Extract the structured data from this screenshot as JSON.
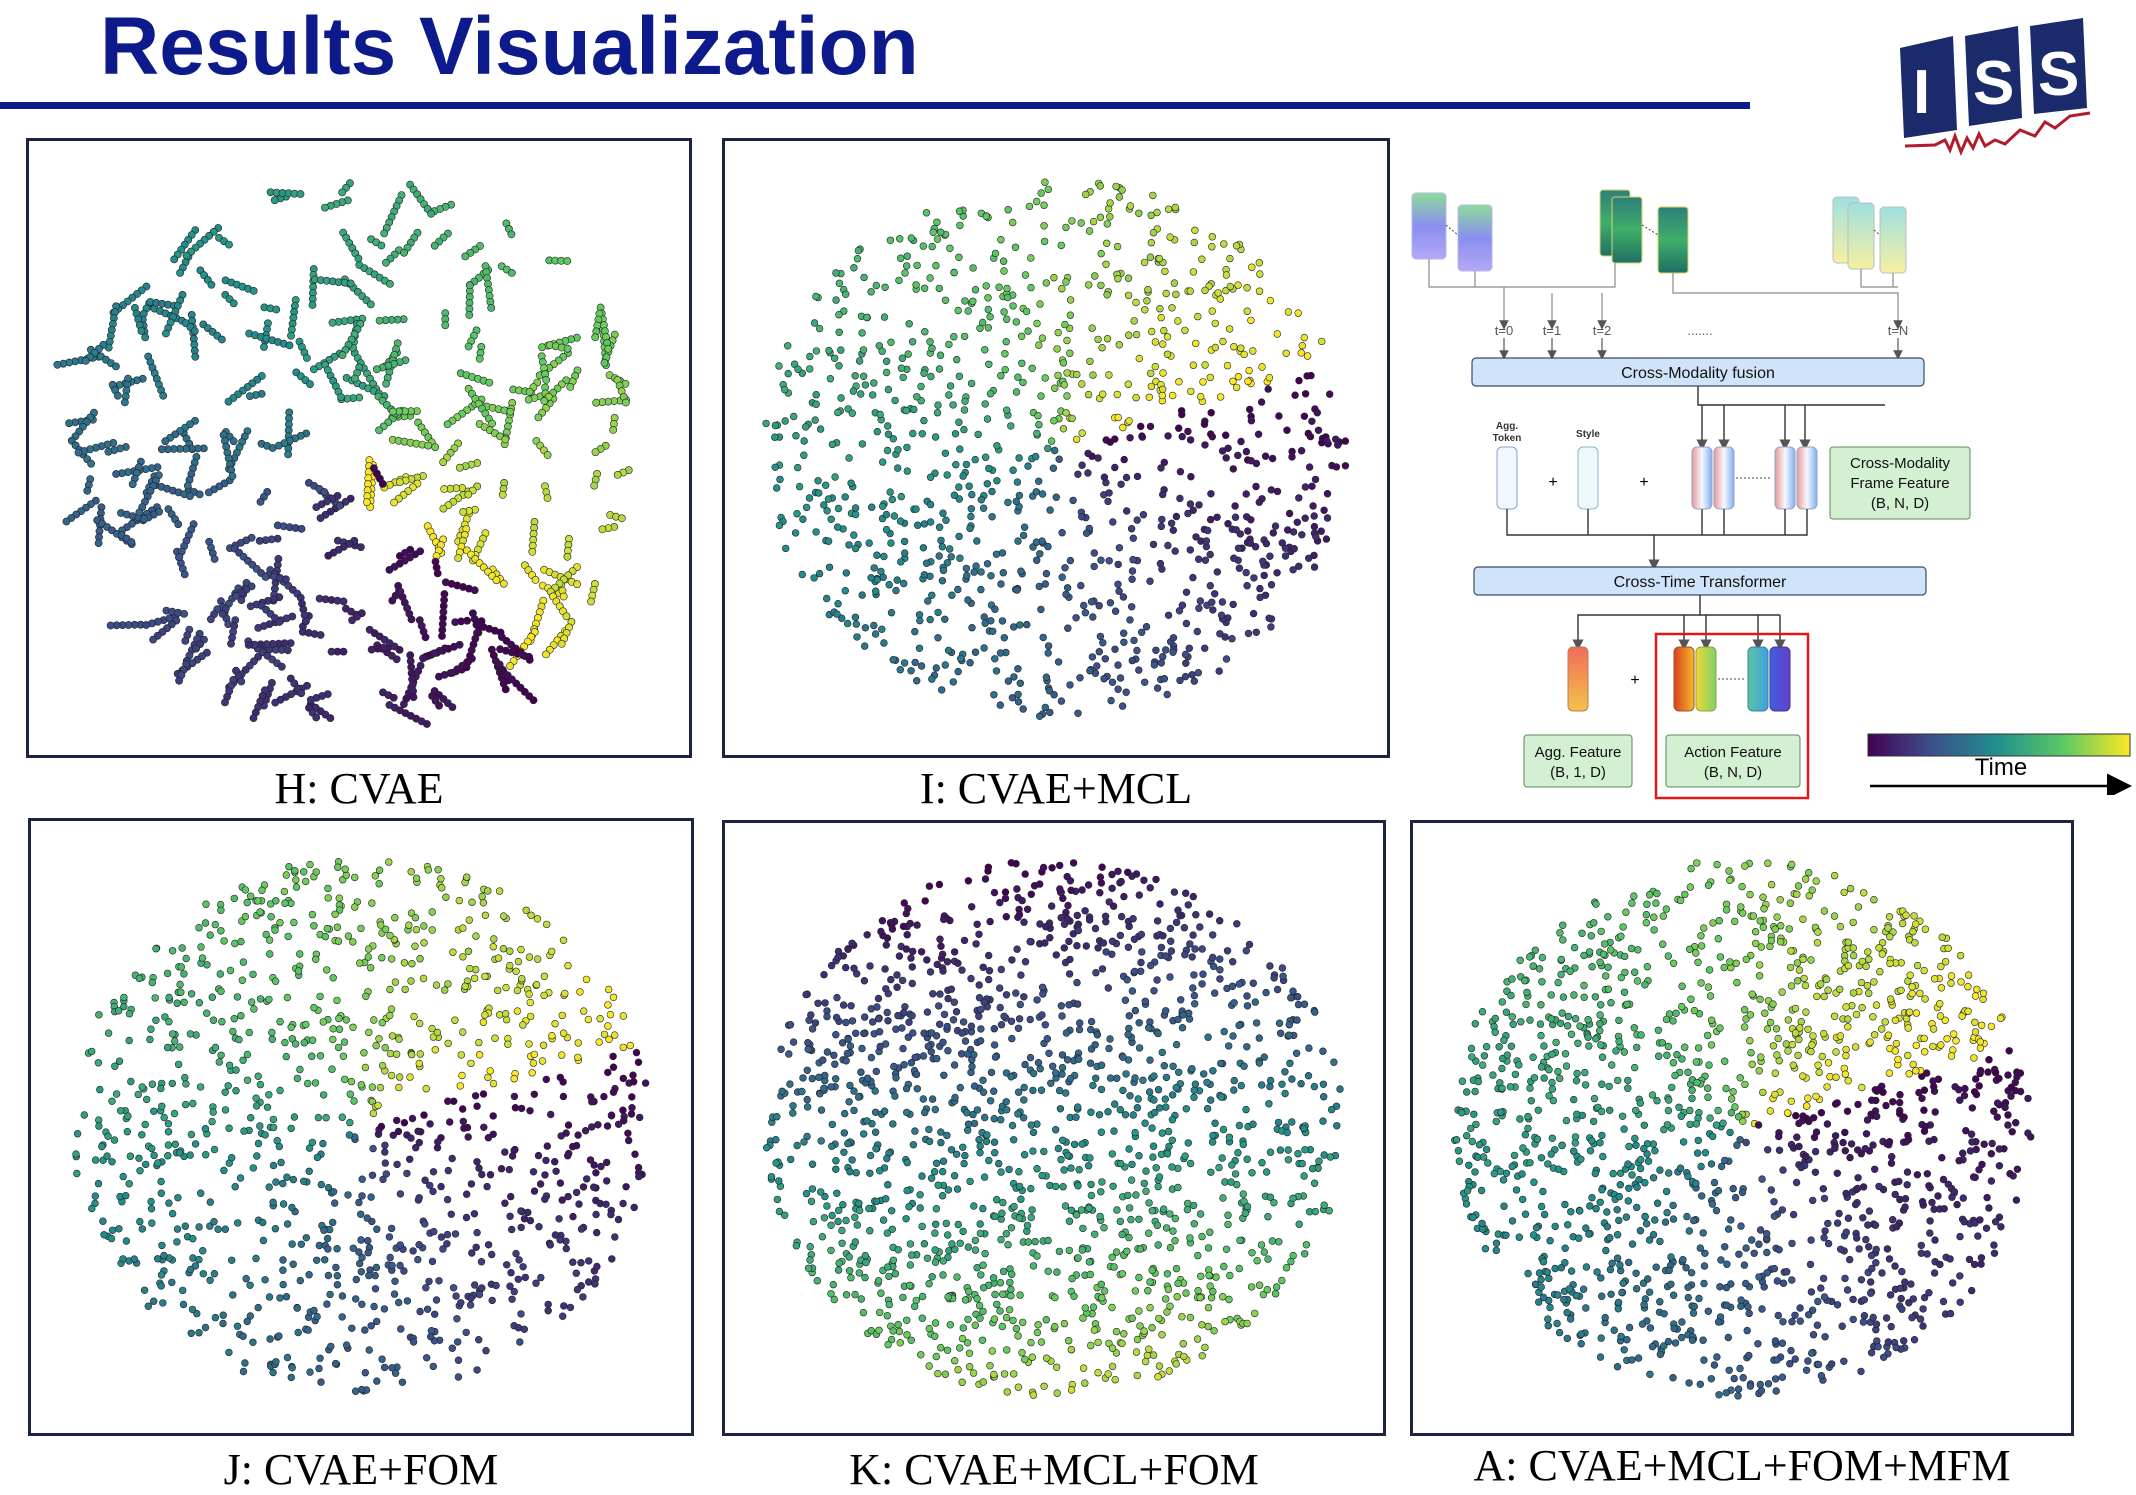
{
  "title": "Results Visualization",
  "logo": {
    "text": "ISS",
    "color": "#1b2a6b",
    "wave_color": "#b01c2e"
  },
  "panels": [
    {
      "id": "H",
      "caption": "H: CVAE",
      "layout": "chain"
    },
    {
      "id": "I",
      "caption": "I: CVAE+MCL",
      "layout": "scatter"
    },
    {
      "id": "J",
      "caption": "J: CVAE+FOM",
      "layout": "scatter"
    },
    {
      "id": "K",
      "caption": "K: CVAE+MCL+FOM",
      "layout": "clusters"
    },
    {
      "id": "A",
      "caption": "A: CVAE+MCL+FOM+MFM",
      "layout": "clusters"
    }
  ],
  "diagram": {
    "time_labels": [
      "t=0",
      "t=1",
      "t=2",
      ".......",
      "t=N"
    ],
    "fusion_label": "Cross-Modality fusion",
    "agg_token_label": [
      "Agg.",
      "Token"
    ],
    "style_label": "Style",
    "plus": "+",
    "cross_modality_feature": [
      "Cross-Modality",
      "Frame Feature",
      "(B, N, D)"
    ],
    "transformer_label": "Cross-Time Transformer",
    "agg_feature": [
      "Agg. Feature",
      "(B, 1, D)"
    ],
    "action_feature": [
      "Action Feature",
      "(B, N, D)"
    ]
  },
  "colorbar": {
    "label": "Time",
    "colors": [
      "#440154",
      "#3b528b",
      "#21918c",
      "#5ec962",
      "#fde725"
    ]
  }
}
